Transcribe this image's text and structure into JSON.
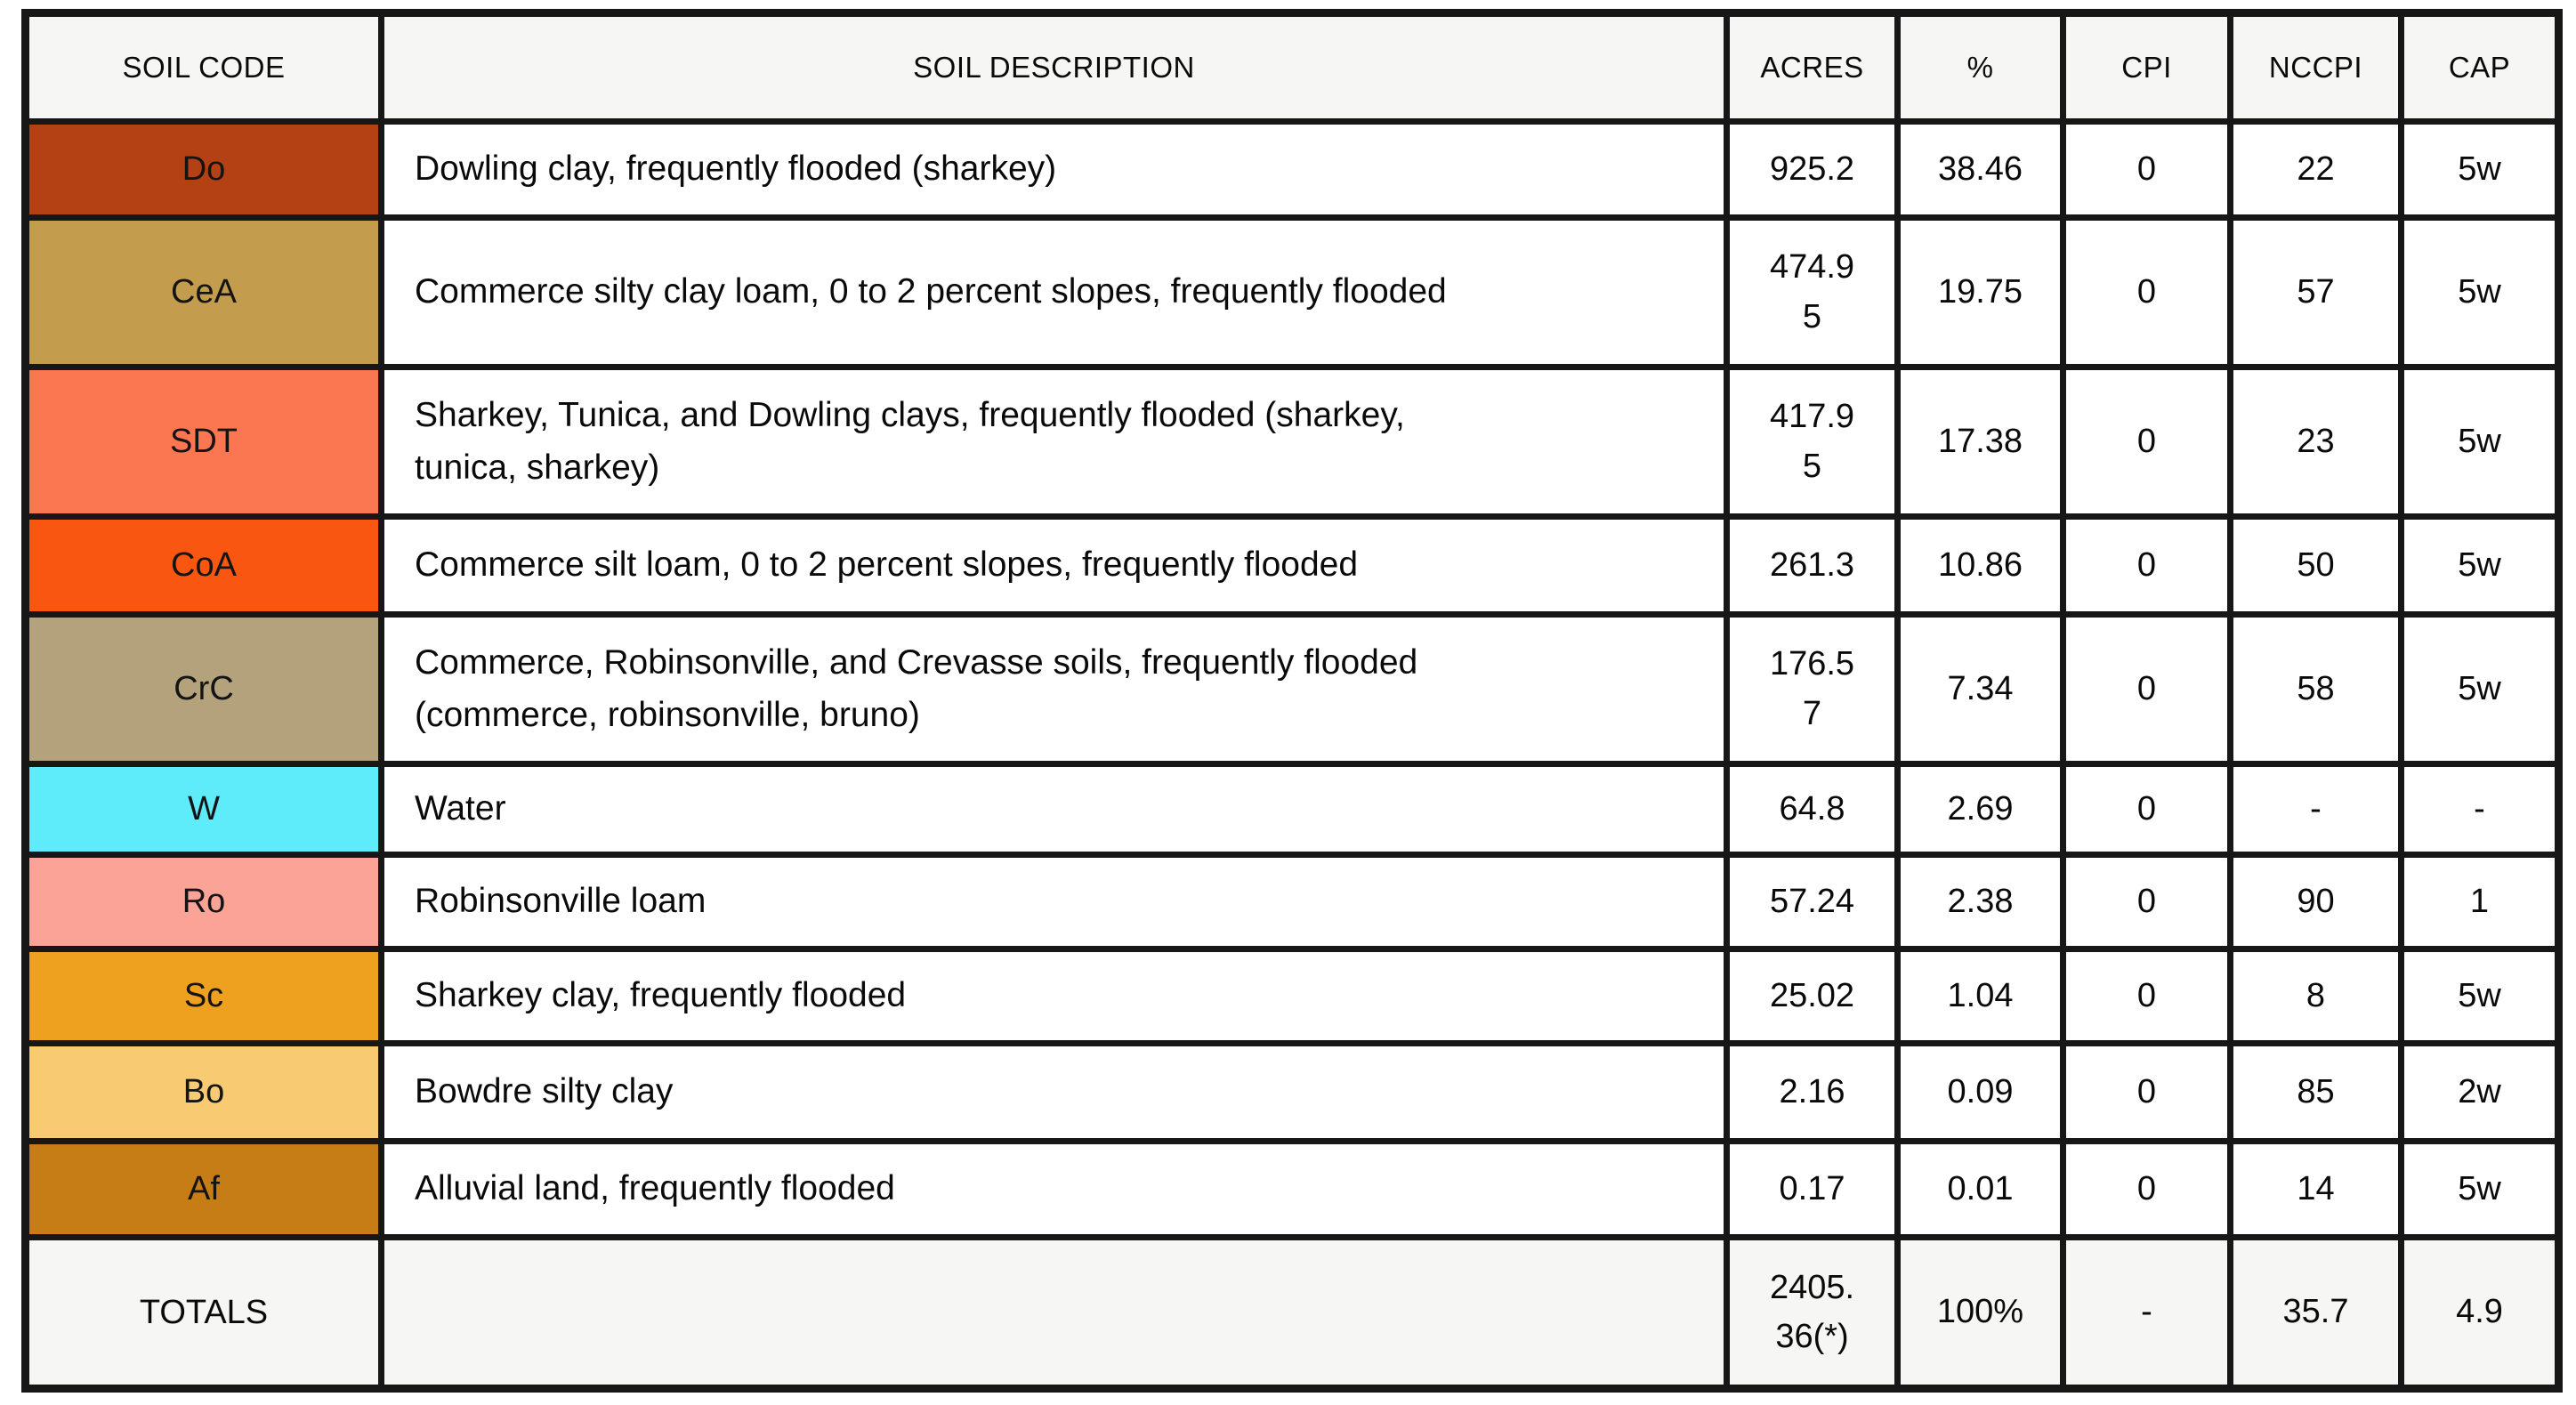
{
  "chart_data": {
    "type": "table",
    "columns": [
      {
        "key": "code",
        "label": "SOIL CODE"
      },
      {
        "key": "description",
        "label": "SOIL DESCRIPTION"
      },
      {
        "key": "acres",
        "label": "ACRES"
      },
      {
        "key": "pct",
        "label": "%"
      },
      {
        "key": "cpi",
        "label": "CPI"
      },
      {
        "key": "nccpi",
        "label": "NCCPI"
      },
      {
        "key": "cap",
        "label": "CAP"
      }
    ],
    "rows": [
      {
        "code": "Do",
        "color": "#b34113",
        "description": "Dowling clay, frequently flooded (sharkey)",
        "acres": "925.2",
        "pct": "38.46",
        "cpi": "0",
        "nccpi": "22",
        "cap": "5w"
      },
      {
        "code": "CeA",
        "color": "#c49c4d",
        "description": "Commerce silty clay loam, 0 to 2 percent slopes, frequently flooded",
        "acres": "474.9\n5",
        "pct": "19.75",
        "cpi": "0",
        "nccpi": "57",
        "cap": "5w"
      },
      {
        "code": "SDT",
        "color": "#fb7752",
        "description": "Sharkey, Tunica, and Dowling clays, frequently flooded (sharkey,\ntunica, sharkey)",
        "acres": "417.9\n5",
        "pct": "17.38",
        "cpi": "0",
        "nccpi": "23",
        "cap": "5w"
      },
      {
        "code": "CoA",
        "color": "#f95711",
        "description": "Commerce silt loam, 0 to 2 percent slopes, frequently flooded",
        "acres": "261.3",
        "pct": "10.86",
        "cpi": "0",
        "nccpi": "50",
        "cap": "5w"
      },
      {
        "code": "CrC",
        "color": "#b4a27c",
        "description": "Commerce, Robinsonville, and Crevasse soils, frequently flooded\n(commerce, robinsonville, bruno)",
        "acres": "176.5\n7",
        "pct": "7.34",
        "cpi": "0",
        "nccpi": "58",
        "cap": "5w"
      },
      {
        "code": "W",
        "color": "#5fecfa",
        "description": "Water",
        "acres": "64.8",
        "pct": "2.69",
        "cpi": "0",
        "nccpi": "-",
        "cap": "-"
      },
      {
        "code": "Ro",
        "color": "#fba396",
        "description": "Robinsonville loam",
        "acres": "57.24",
        "pct": "2.38",
        "cpi": "0",
        "nccpi": "90",
        "cap": "1"
      },
      {
        "code": "Sc",
        "color": "#eea01f",
        "description": "Sharkey clay, frequently flooded",
        "acres": "25.02",
        "pct": "1.04",
        "cpi": "0",
        "nccpi": "8",
        "cap": "5w"
      },
      {
        "code": "Bo",
        "color": "#f8cb73",
        "description": "Bowdre silty clay",
        "acres": "2.16",
        "pct": "0.09",
        "cpi": "0",
        "nccpi": "85",
        "cap": "2w"
      },
      {
        "code": "Af",
        "color": "#c67d15",
        "description": "Alluvial land, frequently flooded",
        "acres": "0.17",
        "pct": "0.01",
        "cpi": "0",
        "nccpi": "14",
        "cap": "5w"
      }
    ],
    "totals": {
      "label": "TOTALS",
      "description": "",
      "acres": "2405.\n36(*)",
      "pct": "100%",
      "cpi": "-",
      "nccpi": "35.7",
      "cap": "4.9"
    }
  },
  "colors": {
    "border": "#171717",
    "header_bg": "#f6f6f4",
    "row_bg": "#ffffff",
    "text": "#0a0a0a"
  }
}
